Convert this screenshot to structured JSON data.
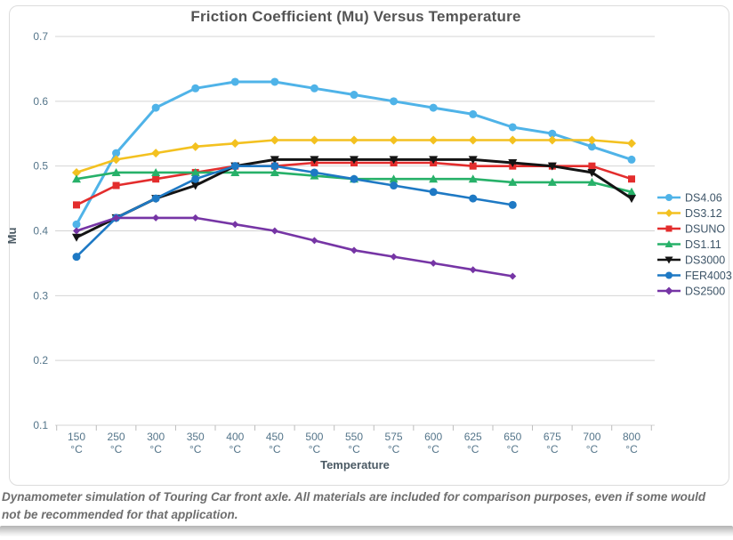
{
  "chart_data": {
    "type": "line",
    "title": "Friction Coefficient (Mu) Versus Temperature",
    "xlabel": "Temperature",
    "ylabel": "Mu",
    "ylim": [
      0.1,
      0.7
    ],
    "yticks": [
      0.1,
      0.2,
      0.3,
      0.4,
      0.5,
      0.6,
      0.7
    ],
    "grid": true,
    "legend_position": "right",
    "category_unit": "°C",
    "categories": [
      "150",
      "250",
      "300",
      "350",
      "400",
      "450",
      "500",
      "550",
      "575",
      "600",
      "625",
      "650",
      "675",
      "700",
      "800"
    ],
    "series": [
      {
        "name": "DS4.06",
        "color": "#4fb3e8",
        "marker": "circle",
        "values": [
          0.41,
          0.52,
          0.59,
          0.62,
          0.63,
          0.63,
          0.62,
          0.61,
          0.6,
          0.59,
          0.58,
          0.56,
          0.55,
          0.53,
          0.51
        ]
      },
      {
        "name": "DS3.12",
        "color": "#f3c120",
        "marker": "diamond",
        "values": [
          0.49,
          0.51,
          0.52,
          0.53,
          0.535,
          0.54,
          0.54,
          0.54,
          0.54,
          0.54,
          0.54,
          0.54,
          0.54,
          0.54,
          0.535
        ]
      },
      {
        "name": "DSUNO",
        "color": "#e32d2d",
        "marker": "square",
        "values": [
          0.44,
          0.47,
          0.48,
          0.49,
          0.5,
          0.5,
          0.505,
          0.505,
          0.505,
          0.505,
          0.5,
          0.5,
          0.5,
          0.5,
          0.48
        ]
      },
      {
        "name": "DS1.11",
        "color": "#27b169",
        "marker": "triangle-up",
        "values": [
          0.48,
          0.49,
          0.49,
          0.49,
          0.49,
          0.49,
          0.485,
          0.48,
          0.48,
          0.48,
          0.48,
          0.475,
          0.475,
          0.475,
          0.46
        ]
      },
      {
        "name": "DS3000",
        "color": "#141414",
        "marker": "triangle-down",
        "values": [
          0.39,
          0.42,
          0.45,
          0.47,
          0.5,
          0.51,
          0.51,
          0.51,
          0.51,
          0.51,
          0.51,
          0.505,
          0.5,
          0.49,
          0.45
        ]
      },
      {
        "name": "FER4003",
        "color": "#1e79c4",
        "marker": "circle",
        "values": [
          0.36,
          0.42,
          0.45,
          0.48,
          0.5,
          0.5,
          0.49,
          0.48,
          0.47,
          0.46,
          0.45,
          0.44,
          null,
          null,
          null
        ]
      },
      {
        "name": "DS2500",
        "color": "#7635a5",
        "marker": "diamond",
        "values": [
          0.4,
          0.42,
          0.42,
          0.42,
          0.41,
          0.4,
          0.385,
          0.37,
          0.36,
          0.35,
          0.34,
          0.33,
          null,
          null,
          null
        ]
      }
    ]
  },
  "caption": {
    "text": "Dynamometer simulation of Touring Car front axle. All materials are included for comparison purposes, even if some would not be recommended for that application."
  },
  "colors": {
    "grid": "#d4d4d4",
    "tick_label": "#54758a",
    "title": "#545454",
    "caption": "#6e6e6e"
  }
}
